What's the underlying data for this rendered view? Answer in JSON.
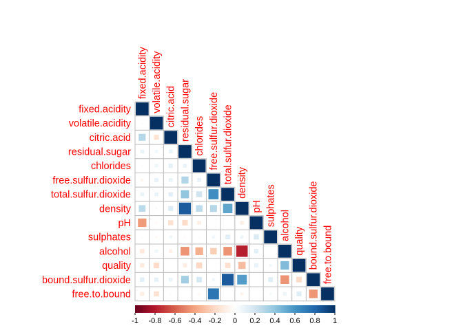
{
  "chart_data": {
    "type": "heatmap",
    "title": "",
    "variables": [
      "fixed.acidity",
      "volatile.acidity",
      "citric.acid",
      "residual.sugar",
      "chlorides",
      "free.sulfur.dioxide",
      "total.sulfur.dioxide",
      "density",
      "pH",
      "sulphates",
      "alcohol",
      "quality",
      "bound.sulfur.dioxide",
      "free.to.bound"
    ],
    "matrix_shape": "lower-triangle",
    "correlations": [
      [
        1
      ],
      [
        -0.02,
        1
      ],
      [
        0.29,
        -0.15,
        1
      ],
      [
        0.09,
        0.06,
        0.09,
        1
      ],
      [
        0.02,
        0.07,
        0.11,
        0.09,
        1
      ],
      [
        -0.05,
        0.1,
        0.09,
        0.3,
        0.1,
        1
      ],
      [
        0.09,
        0.09,
        0.12,
        0.4,
        0.2,
        0.62,
        1
      ],
      [
        0.27,
        0.03,
        0.15,
        0.84,
        0.26,
        0.29,
        0.53,
        1
      ],
      [
        -0.43,
        -0.03,
        -0.16,
        -0.19,
        -0.09,
        0,
        0,
        -0.09,
        1
      ],
      [
        -0.02,
        -0.04,
        0.06,
        -0.03,
        0.02,
        0.06,
        0.13,
        0.07,
        0.16,
        1
      ],
      [
        -0.12,
        0.07,
        -0.08,
        -0.45,
        -0.36,
        -0.25,
        -0.45,
        -0.78,
        0.12,
        -0.02,
        1
      ],
      [
        -0.11,
        -0.19,
        -0.01,
        -0.1,
        -0.21,
        0.01,
        -0.17,
        -0.31,
        0.1,
        0.05,
        0.44,
        1
      ],
      [
        0.12,
        0.11,
        0.09,
        0.35,
        0.18,
        0.06,
        0.84,
        0.56,
        0,
        0.14,
        -0.45,
        -0.19,
        1
      ],
      [
        -0.1,
        -0.16,
        0.02,
        0,
        -0.04,
        0.73,
        0,
        -0.06,
        0,
        0.04,
        0.08,
        0.14,
        -0.44,
        1
      ]
    ],
    "colorbar": {
      "range": [
        -1,
        1
      ],
      "ticks": [
        "-1",
        "-0.8",
        "-0.6",
        "-0.4",
        "-0.2",
        "0",
        "0.2",
        "0.4",
        "0.6",
        "0.8",
        "1"
      ],
      "tick_values": [
        -1,
        -0.8,
        -0.6,
        -0.4,
        -0.2,
        0,
        0.2,
        0.4,
        0.6,
        0.8,
        1
      ],
      "placement": "bottom"
    },
    "palette": [
      "#67001f",
      "#b2182b",
      "#d6604d",
      "#f4a582",
      "#fddbc7",
      "#ffffff",
      "#d1e5f0",
      "#92c5de",
      "#4393c3",
      "#2166ac",
      "#053061"
    ],
    "label_color": "#ff0000",
    "grid_color": "#bebebe",
    "method": "square"
  }
}
